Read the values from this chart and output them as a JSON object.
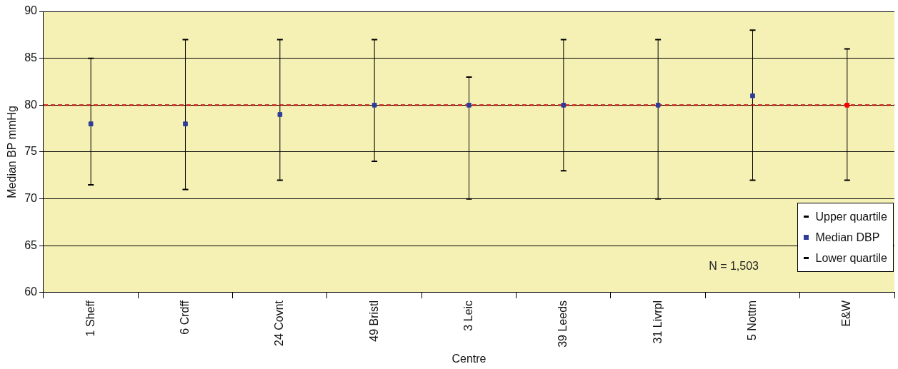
{
  "chart_data": {
    "type": "scatter",
    "xlabel": "Centre",
    "ylabel": "Median BP mmHg",
    "categories": [
      "1 Sheff",
      "6 Crdff",
      "24 Covnt",
      "49 Bristl",
      "3 Leic",
      "39 Leeds",
      "31 Livrpl",
      "5 Nottm",
      "E&W"
    ],
    "series": [
      {
        "name": "Upper quartile",
        "color": "#000000",
        "values": [
          null,
          null,
          null,
          null,
          null,
          null,
          null,
          null,
          null
        ]
      },
      {
        "name": "Median DBP",
        "color": "#2e3d9a",
        "colors": [
          "#2e3d9a",
          "#2e3d9a",
          "#2e3d9a",
          "#2e3d9a",
          "#2e3d9a",
          "#2e3d9a",
          "#2e3d9a",
          "#2e3d9a",
          "#ff0000"
        ],
        "marker": "square",
        "values": [
          78,
          78,
          79,
          80,
          80,
          80,
          80,
          81,
          80
        ],
        "errors": [
          [
            71.5,
            85
          ],
          [
            71,
            87
          ],
          [
            72,
            87
          ],
          [
            74,
            87
          ],
          [
            70,
            83
          ],
          [
            73,
            87
          ],
          [
            70,
            87
          ],
          [
            72,
            88
          ],
          [
            72,
            86
          ]
        ]
      },
      {
        "name": "Lower quartile",
        "color": "#000000",
        "values": [
          null,
          null,
          null,
          null,
          null,
          null,
          null,
          null,
          null
        ]
      }
    ],
    "ylim": [
      60,
      90
    ],
    "yticks": [
      60,
      65,
      70,
      75,
      80,
      85,
      90
    ],
    "grid": "y",
    "legend": "bottom right",
    "ref_lines": [
      {
        "axis": "y",
        "value": 80,
        "color": "#c00000",
        "line_style": "dashed"
      }
    ],
    "annotations": [
      "N = 1,503"
    ]
  }
}
